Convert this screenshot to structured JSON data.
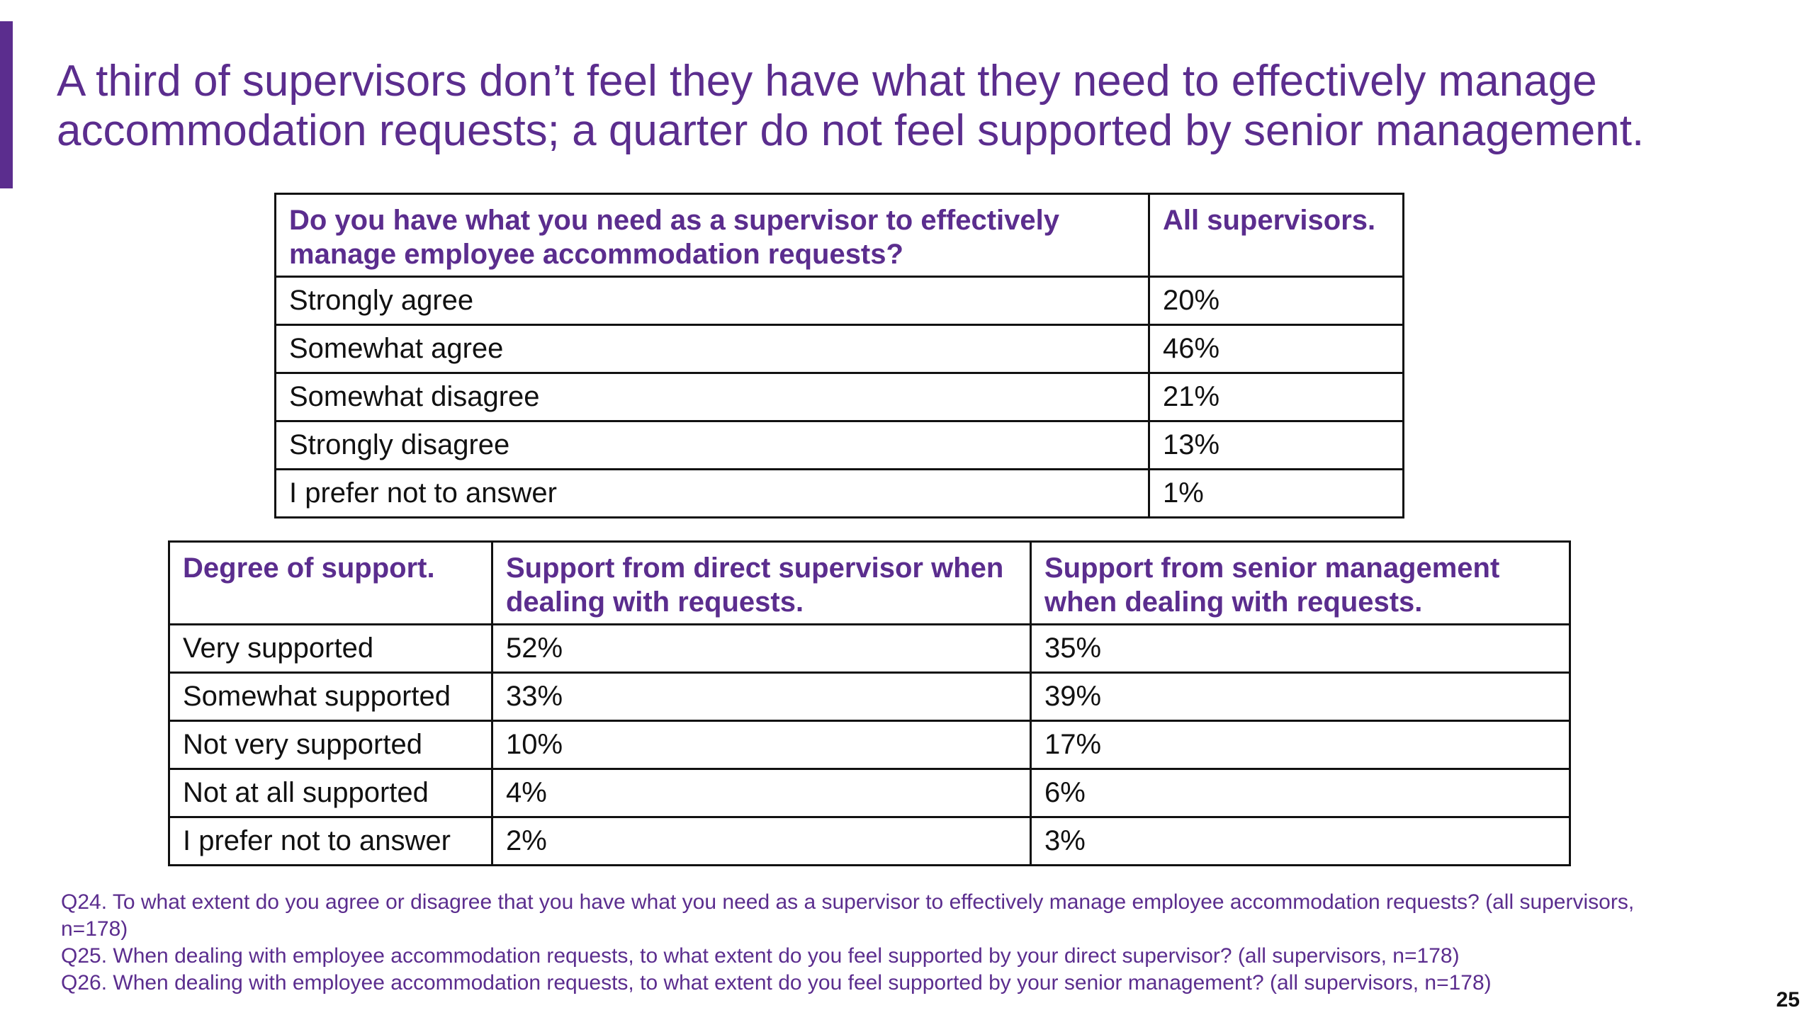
{
  "slide": {
    "title": "A third of supervisors don’t feel they have what they need to effectively manage accommodation requests; a quarter do not feel supported by senior management.",
    "page_number": "25",
    "accent_color": "#5b2d8e"
  },
  "table1": {
    "headers": [
      "Do you have what you need as a supervisor to effectively manage employee accommodation requests?",
      "All supervisors."
    ],
    "rows": [
      [
        "Strongly agree",
        "20%"
      ],
      [
        "Somewhat agree",
        "46%"
      ],
      [
        "Somewhat disagree",
        "21%"
      ],
      [
        "Strongly disagree",
        "13%"
      ],
      [
        "I prefer not to answer",
        "1%"
      ]
    ]
  },
  "table2": {
    "headers": [
      "Degree of support.",
      "Support from direct supervisor when dealing with requests.",
      "Support from senior management when dealing with requests."
    ],
    "rows": [
      [
        "Very supported",
        "52%",
        "35%"
      ],
      [
        "Somewhat supported",
        "33%",
        "39%"
      ],
      [
        "Not very supported",
        "10%",
        "17%"
      ],
      [
        "Not at all supported",
        "4%",
        "6%"
      ],
      [
        "I prefer not to answer",
        "2%",
        "3%"
      ]
    ]
  },
  "footnotes": [
    "Q24. To what extent do you agree or disagree that you have what you need as a supervisor to effectively manage employee accommodation requests? (all supervisors, n=178)",
    "Q25. When dealing with employee accommodation requests, to what extent do you feel supported by your direct supervisor? (all supervisors, n=178)",
    "Q26. When dealing with employee accommodation requests, to what extent do you feel supported by your senior management? (all supervisors, n=178)"
  ]
}
